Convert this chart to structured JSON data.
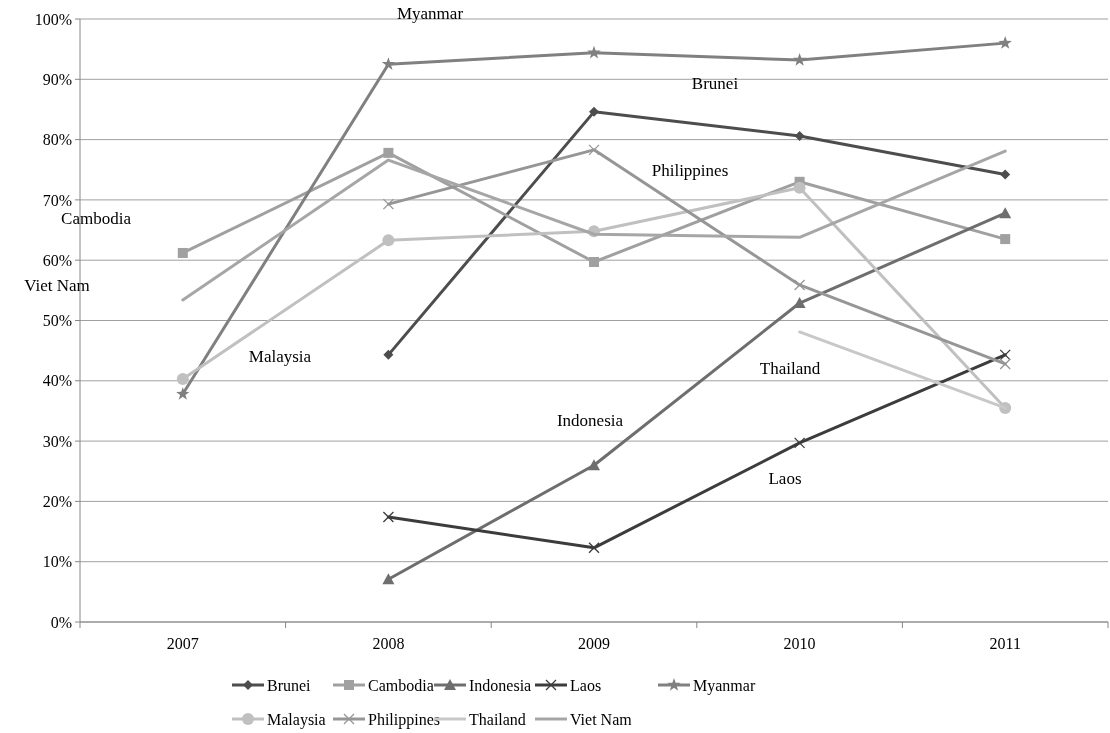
{
  "chart_data": {
    "type": "line",
    "categories": [
      "2007",
      "2008",
      "2009",
      "2010",
      "2011"
    ],
    "ylim": [
      0,
      100
    ],
    "yticks": [
      {
        "value": 0,
        "label": "0%"
      },
      {
        "value": 10,
        "label": "10%"
      },
      {
        "value": 20,
        "label": "20%"
      },
      {
        "value": 30,
        "label": "30%"
      },
      {
        "value": 40,
        "label": "40%"
      },
      {
        "value": 50,
        "label": "50%"
      },
      {
        "value": 60,
        "label": "60%"
      },
      {
        "value": 70,
        "label": "70%"
      },
      {
        "value": 80,
        "label": "80%"
      },
      {
        "value": 90,
        "label": "90%"
      },
      {
        "value": 100,
        "label": "100%"
      }
    ],
    "grid": "y",
    "legend": "bottom",
    "line_style": "solid",
    "series": [
      {
        "name": "Brunei",
        "color": "#4d4d4d",
        "marker": "diamond",
        "values": [
          null,
          44.3,
          84.6,
          80.6,
          74.2
        ]
      },
      {
        "name": "Cambodia",
        "color": "#a0a0a0",
        "marker": "square",
        "values": [
          61.2,
          77.8,
          59.7,
          73,
          63.5
        ]
      },
      {
        "name": "Indonesia",
        "color": "#6e6e6e",
        "marker": "triangle",
        "values": [
          null,
          7.1,
          26,
          52.9,
          67.8
        ]
      },
      {
        "name": "Laos",
        "color": "#3c3c3c",
        "marker": "cross",
        "values": [
          null,
          17.4,
          12.3,
          29.7,
          44.3
        ]
      },
      {
        "name": "Myanmar",
        "color": "#808080",
        "marker": "star",
        "values": [
          37.8,
          92.5,
          94.4,
          93.2,
          96
        ]
      },
      {
        "name": "Malaysia",
        "color": "#c0c0c0",
        "marker": "circle",
        "values": [
          40.3,
          63.3,
          64.8,
          72,
          35.5
        ]
      },
      {
        "name": "Philippines",
        "color": "#969696",
        "marker": "cross",
        "values": [
          null,
          69.3,
          78.3,
          55.9,
          42.8
        ]
      },
      {
        "name": "Thailand",
        "color": "#c8c8c8",
        "marker": "none",
        "values": [
          null,
          null,
          null,
          48.1,
          35.5
        ]
      },
      {
        "name": "Viet Nam",
        "color": "#a6a6a6",
        "marker": "none",
        "values": [
          53.4,
          76.6,
          64.3,
          63.8,
          78.1
        ]
      }
    ],
    "annotations": [
      "Myanmar",
      "Brunei",
      "Philippines",
      "Cambodia",
      "Viet Nam",
      "Malaysia",
      "Indonesia",
      "Thailand",
      "Laos"
    ]
  }
}
